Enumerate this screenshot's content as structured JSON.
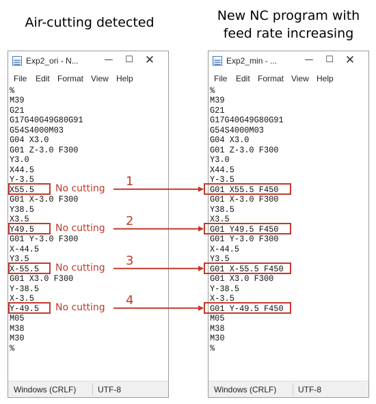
{
  "headings": {
    "left": "Air-cutting detected",
    "right_line1": "New NC program with",
    "right_line2": "feed rate increasing"
  },
  "windows": {
    "original": {
      "title": "Exp2_ori - N...",
      "controls": {
        "minimize": "—",
        "maximize": "☐",
        "close": "✕"
      },
      "menu": [
        "File",
        "Edit",
        "Format",
        "View",
        "Help"
      ],
      "lines": [
        "%",
        "M39",
        "G21",
        "G17G40G49G80G91",
        "G54S4000M03",
        "G04 X3.0",
        "G01 Z-3.0 F300",
        "Y3.0",
        "X44.5",
        "Y-3.5",
        "X55.5",
        "G01 X-3.0 F300",
        "Y38.5",
        "X3.5",
        "Y49.5",
        "G01 Y-3.0 F300",
        "X-44.5",
        "Y3.5",
        "X-55.5",
        "G01 X3.0 F300",
        "Y-38.5",
        "X-3.5",
        "Y-49.5",
        "M05",
        "M38",
        "M30",
        "%"
      ],
      "status": {
        "eol": "Windows (CRLF)",
        "encoding": "UTF-8"
      }
    },
    "modified": {
      "title": "Exp2_min - ...",
      "controls": {
        "minimize": "—",
        "maximize": "☐",
        "close": "✕"
      },
      "menu": [
        "File",
        "Edit",
        "Format",
        "View",
        "Help"
      ],
      "lines": [
        "%",
        "M39",
        "G21",
        "G17G40G49G80G91",
        "G54S4000M03",
        "G04 X3.0",
        "G01 Z-3.0 F300",
        "Y3.0",
        "X44.5",
        "Y-3.5",
        "G01 X55.5 F450",
        "G01 X-3.0 F300",
        "Y38.5",
        "X3.5",
        "G01 Y49.5 F450",
        "G01 Y-3.0 F300",
        "X-44.5",
        "Y3.5",
        "G01 X-55.5 F450",
        "G01 X3.0 F300",
        "Y-38.5",
        "X-3.5",
        "G01 Y-49.5 F450",
        "M05",
        "M38",
        "M30",
        "%"
      ],
      "status": {
        "eol": "Windows (CRLF)",
        "encoding": "UTF-8"
      }
    }
  },
  "annotations": [
    {
      "number": "1",
      "label": "No cutting",
      "line_index": 10
    },
    {
      "number": "2",
      "label": "No cutting",
      "line_index": 14
    },
    {
      "number": "3",
      "label": "No cutting",
      "line_index": 18
    },
    {
      "number": "4",
      "label": "No cutting",
      "line_index": 22
    }
  ],
  "colors": {
    "highlight": "#c0392b",
    "text": "#111111",
    "status_bar": "#f0f0f0"
  }
}
